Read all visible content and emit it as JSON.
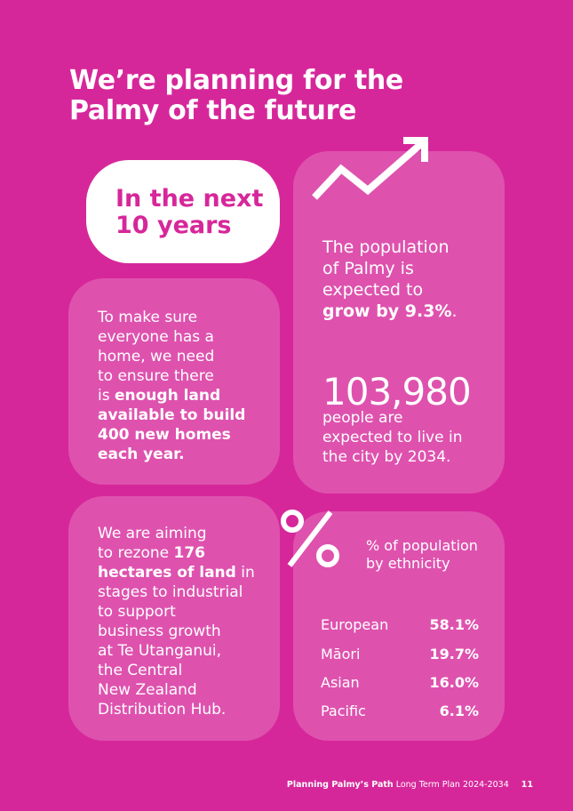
{
  "title": {
    "line1": "We’re planning for the",
    "line2": "Palmy of the future"
  },
  "pill": {
    "line1": "In the next",
    "line2": "10 years"
  },
  "homes_card": {
    "lines": [
      "To make sure",
      "everyone has a",
      "home, we need",
      "to ensure there"
    ],
    "line5_plain": "is ",
    "line5_bold": "enough land",
    "bold_lines": [
      "available to build",
      "400 new homes",
      "each year."
    ]
  },
  "population_card": {
    "lines": [
      "The population",
      "of Palmy is",
      "expected to"
    ],
    "growth_bold": "grow by 9.3%",
    "growth_end": ".",
    "big_number": "103,980",
    "people_lines": [
      "people are",
      "expected to live in",
      "the city by 2034."
    ]
  },
  "rezone_card": {
    "line1": "We are aiming",
    "line2_plain": "to rezone ",
    "line2_bold": "176",
    "line3_bold": "hectares of land",
    "line3_plain": " in",
    "lines": [
      "stages to industrial",
      "to support",
      "business growth",
      "at Te Utanganui,",
      "the Central",
      "New Zealand",
      "Distribution Hub."
    ]
  },
  "ethnicity_card": {
    "heading_lines": [
      "% of population",
      "by ethnicity"
    ],
    "rows": [
      {
        "label": "European",
        "value": "58.1%"
      },
      {
        "label": "Māori",
        "value": "19.7%"
      },
      {
        "label": "Asian",
        "value": "16.0%"
      },
      {
        "label": "Pacific",
        "value": "6.1%"
      }
    ]
  },
  "icons": {
    "growth": "trend-up-arrow-icon",
    "percent": "percent-icon"
  },
  "footer": {
    "bold": "Planning Palmy’s Path",
    "rest": " Long Term Plan 2024-2034",
    "page_number": "11"
  },
  "colors": {
    "background": "#d6279a",
    "card": "rgba(255,255,255,0.2)",
    "text": "#ffffff"
  }
}
